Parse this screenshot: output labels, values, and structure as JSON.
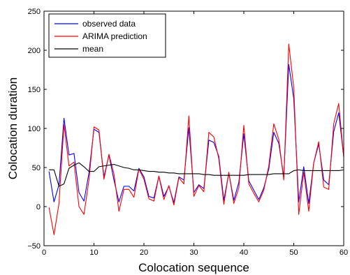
{
  "chart_data": {
    "type": "line",
    "title": "",
    "xlabel": "Colocation sequence",
    "ylabel": "Colocation duration",
    "xlim": [
      0,
      60
    ],
    "ylim": [
      -50,
      250
    ],
    "xticks": [
      0,
      10,
      20,
      30,
      40,
      50,
      60
    ],
    "yticks": [
      -50,
      0,
      50,
      100,
      150,
      200,
      250
    ],
    "grid": false,
    "legend_position": "top-left",
    "x": [
      1,
      2,
      3,
      4,
      5,
      6,
      7,
      8,
      9,
      10,
      11,
      12,
      13,
      14,
      15,
      16,
      17,
      18,
      19,
      20,
      21,
      22,
      23,
      24,
      25,
      26,
      27,
      28,
      29,
      30,
      31,
      32,
      33,
      34,
      35,
      36,
      37,
      38,
      39,
      40,
      41,
      42,
      43,
      44,
      45,
      46,
      47,
      48,
      49,
      50,
      51,
      52,
      53,
      54,
      55,
      56,
      57,
      58,
      59,
      60
    ],
    "series": [
      {
        "name": "observed data",
        "color": "#0000ff",
        "values": [
          45,
          6,
          28,
          113,
          66,
          68,
          18,
          7,
          43,
          99,
          95,
          38,
          66,
          34,
          6,
          26,
          26,
          20,
          49,
          38,
          13,
          11,
          39,
          13,
          26,
          5,
          38,
          34,
          101,
          18,
          28,
          23,
          85,
          82,
          64,
          8,
          43,
          8,
          31,
          93,
          33,
          21,
          9,
          24,
          48,
          95,
          81,
          38,
          182,
          138,
          6,
          51,
          4,
          56,
          80,
          34,
          28,
          96,
          120,
          64
        ]
      },
      {
        "name": "ARIMA prediction",
        "color": "#ff0000",
        "values": [
          -1,
          -36,
          4,
          105,
          52,
          57,
          0,
          -10,
          34,
          102,
          98,
          35,
          67,
          42,
          -6,
          22,
          22,
          12,
          48,
          35,
          10,
          7,
          39,
          9,
          27,
          2,
          37,
          29,
          116,
          13,
          27,
          19,
          95,
          89,
          61,
          3,
          44,
          4,
          24,
          104,
          29,
          17,
          6,
          21,
          52,
          106,
          86,
          34,
          208,
          152,
          -10,
          44,
          -6,
          56,
          83,
          25,
          22,
          106,
          132,
          63
        ]
      },
      {
        "name": "mean",
        "color": "#000000",
        "values": [
          47,
          47,
          26,
          29,
          49,
          53,
          56,
          51,
          45,
          45,
          51,
          52,
          53,
          54,
          52,
          50,
          49,
          47,
          47,
          46,
          45,
          45,
          44,
          44,
          43,
          43,
          42,
          42,
          42,
          42,
          42,
          41,
          41,
          40,
          40,
          40,
          40,
          40,
          40,
          40,
          41,
          41,
          41,
          41,
          41,
          42,
          42,
          42,
          42,
          46,
          47,
          46,
          46,
          46,
          46,
          46,
          46,
          46,
          46,
          47
        ]
      }
    ]
  }
}
